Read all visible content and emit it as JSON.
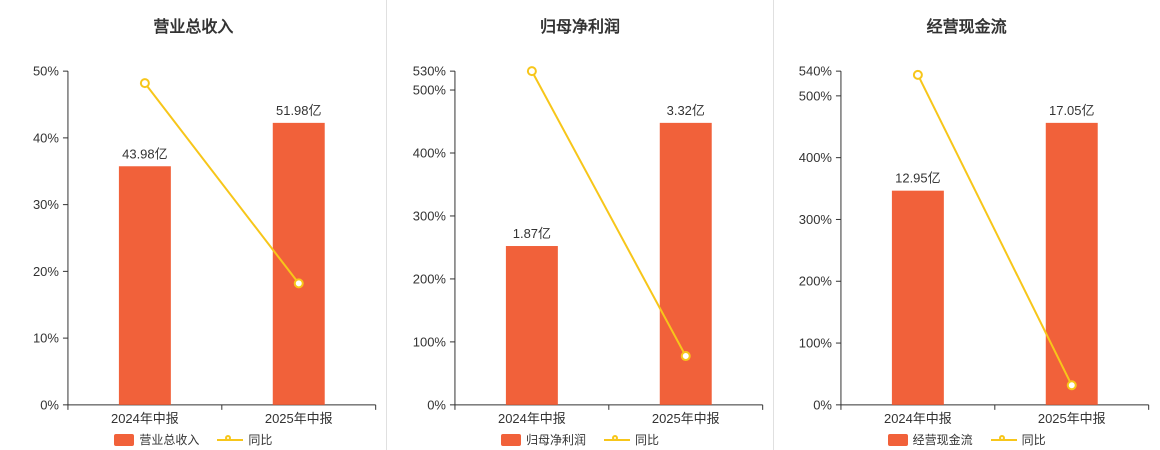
{
  "colors": {
    "bar": "#f1613a",
    "line": "#f7c61a",
    "marker_fill": "#ffffff",
    "axis": "#333333",
    "text": "#333333",
    "title": "#333333",
    "divider": "#e0e0e0",
    "background": "#ffffff"
  },
  "chart_data": [
    {
      "type": "bar",
      "title": "营业总收入",
      "categories": [
        "2024年中报",
        "2025年中报"
      ],
      "bar_series": {
        "name": "营业总收入",
        "unit": "亿",
        "values": [
          43.98,
          51.98
        ],
        "labels": [
          "43.98亿",
          "51.98亿"
        ]
      },
      "line_series": {
        "name": "同比",
        "unit": "%",
        "values": [
          48.2,
          18.2
        ]
      },
      "y_axis": {
        "max": 50,
        "ticks": [
          0,
          10,
          20,
          30,
          40,
          50
        ],
        "tick_labels": [
          "0%",
          "10%",
          "20%",
          "30%",
          "40%",
          "50%"
        ]
      },
      "legend": [
        "营业总收入",
        "同比"
      ],
      "layout": {
        "legend_position": "bottom",
        "grid": false,
        "bar_max_height_fraction": 0.845
      }
    },
    {
      "type": "bar",
      "title": "归母净利润",
      "categories": [
        "2024年中报",
        "2025年中报"
      ],
      "bar_series": {
        "name": "归母净利润",
        "unit": "亿",
        "values": [
          1.87,
          3.32
        ],
        "labels": [
          "1.87亿",
          "3.32亿"
        ]
      },
      "line_series": {
        "name": "同比",
        "unit": "%",
        "values": [
          530,
          77.5
        ]
      },
      "y_axis": {
        "max": 530,
        "ticks": [
          0,
          100,
          200,
          300,
          400,
          500,
          530
        ],
        "tick_labels": [
          "0%",
          "100%",
          "200%",
          "300%",
          "400%",
          "500%",
          "530%"
        ]
      },
      "legend": [
        "归母净利润",
        "同比"
      ],
      "layout": {
        "legend_position": "bottom",
        "grid": false,
        "bar_max_height_fraction": 0.845
      }
    },
    {
      "type": "bar",
      "title": "经营现金流",
      "categories": [
        "2024年中报",
        "2025年中报"
      ],
      "bar_series": {
        "name": "经营现金流",
        "unit": "亿",
        "values": [
          12.95,
          17.05
        ],
        "labels": [
          "12.95亿",
          "17.05亿"
        ]
      },
      "line_series": {
        "name": "同比",
        "unit": "%",
        "values": [
          534,
          31.7
        ]
      },
      "y_axis": {
        "max": 540,
        "ticks": [
          0,
          100,
          200,
          300,
          400,
          500,
          540
        ],
        "tick_labels": [
          "0%",
          "100%",
          "200%",
          "300%",
          "400%",
          "500%",
          "540%"
        ]
      },
      "legend": [
        "经营现金流",
        "同比"
      ],
      "layout": {
        "legend_position": "bottom",
        "grid": false,
        "bar_max_height_fraction": 0.845
      }
    }
  ]
}
